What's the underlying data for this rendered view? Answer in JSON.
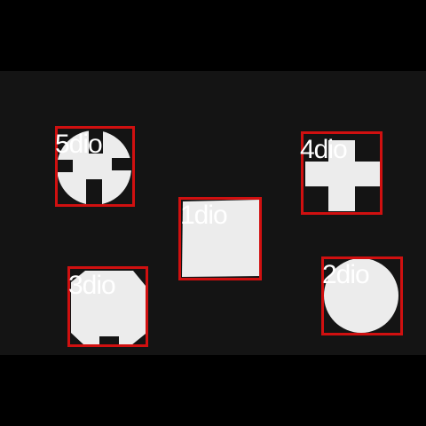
{
  "detections": [
    {
      "label": "1dio",
      "shape": "square"
    },
    {
      "label": "2dio",
      "shape": "circle"
    },
    {
      "label": "3dio",
      "shape": "notched-octagon"
    },
    {
      "label": "4dio",
      "shape": "cross"
    },
    {
      "label": "5dio",
      "shape": "circle-with-cross-cutout"
    }
  ],
  "colors": {
    "background": "#141414",
    "letterbox": "#000000",
    "box": "#d01010",
    "label": "#ffffff",
    "object": "#ececec"
  }
}
